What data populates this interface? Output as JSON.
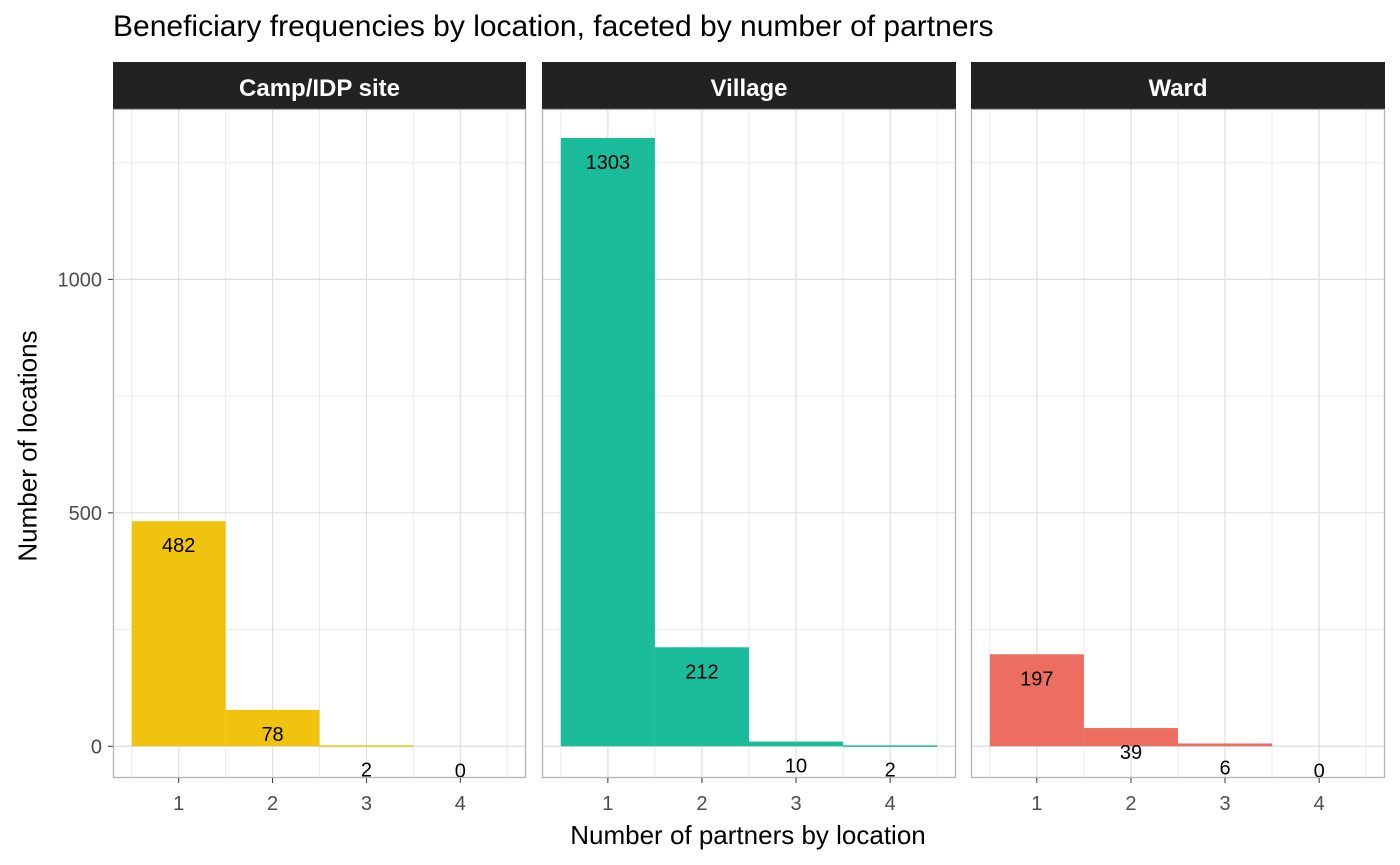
{
  "chart_data": {
    "type": "bar",
    "title": "Beneficiary frequencies by location, faceted by number of partners",
    "xlabel": "Number of partners by location",
    "ylabel": "Number of locations",
    "categories": [
      "1",
      "2",
      "3",
      "4"
    ],
    "yticks": [
      "0",
      "500",
      "1000"
    ],
    "ylim": [
      -68,
      1365
    ],
    "grid": true,
    "facets": [
      {
        "name": "Camp/IDP site",
        "color": "#F0C30F",
        "values": [
          482,
          78,
          2,
          0
        ],
        "labels": [
          "482",
          "78",
          "2",
          "0"
        ]
      },
      {
        "name": "Village",
        "color": "#1ABC9C",
        "values": [
          1303,
          212,
          10,
          2
        ],
        "labels": [
          "1303",
          "212",
          "10",
          "2"
        ]
      },
      {
        "name": "Ward",
        "color": "#EC6E61",
        "values": [
          197,
          39,
          6,
          0
        ],
        "labels": [
          "197",
          "39",
          "6",
          "0"
        ]
      }
    ]
  }
}
